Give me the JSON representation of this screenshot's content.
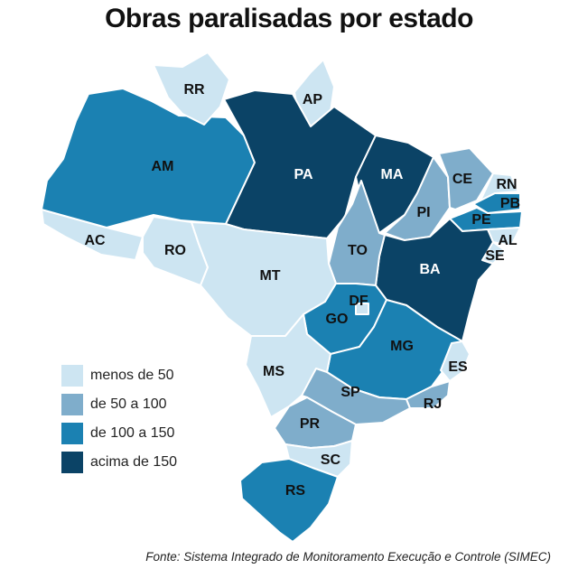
{
  "title": "Obras paralisadas por estado",
  "source": "Fonte: Sistema Integrado de Monitoramento Execução e Controle (SIMEC)",
  "colors": {
    "lt50": "#cde5f2",
    "50to100": "#7fadcb",
    "100to150": "#1b81b2",
    "gt150": "#0b4366",
    "border": "#ffffff"
  },
  "legend": [
    {
      "label": "menos de 50",
      "category": "lt50"
    },
    {
      "label": "de 50 a 100",
      "category": "50to100"
    },
    {
      "label": "de 100 a 150",
      "category": "100to150"
    },
    {
      "label": "acima de 150",
      "category": "gt150"
    }
  ],
  "states": {
    "RR": {
      "label": "RR",
      "category": "lt50"
    },
    "AP": {
      "label": "AP",
      "category": "lt50"
    },
    "AM": {
      "label": "AM",
      "category": "100to150"
    },
    "PA": {
      "label": "PA",
      "category": "gt150"
    },
    "MA": {
      "label": "MA",
      "category": "gt150"
    },
    "CE": {
      "label": "CE",
      "category": "50to100"
    },
    "RN": {
      "label": "RN",
      "category": "lt50"
    },
    "PB": {
      "label": "PB",
      "category": "100to150"
    },
    "PE": {
      "label": "PE",
      "category": "100to150"
    },
    "AL": {
      "label": "AL",
      "category": "lt50"
    },
    "SE": {
      "label": "SE",
      "category": "lt50"
    },
    "PI": {
      "label": "PI",
      "category": "50to100"
    },
    "AC": {
      "label": "AC",
      "category": "lt50"
    },
    "RO": {
      "label": "RO",
      "category": "lt50"
    },
    "TO": {
      "label": "TO",
      "category": "50to100"
    },
    "BA": {
      "label": "BA",
      "category": "gt150"
    },
    "MT": {
      "label": "MT",
      "category": "lt50"
    },
    "DF": {
      "label": "DF",
      "category": "lt50"
    },
    "GO": {
      "label": "GO",
      "category": "100to150"
    },
    "MG": {
      "label": "MG",
      "category": "100to150"
    },
    "ES": {
      "label": "ES",
      "category": "lt50"
    },
    "MS": {
      "label": "MS",
      "category": "lt50"
    },
    "SP": {
      "label": "SP",
      "category": "50to100"
    },
    "RJ": {
      "label": "RJ",
      "category": "50to100"
    },
    "PR": {
      "label": "PR",
      "category": "50to100"
    },
    "SC": {
      "label": "SC",
      "category": "lt50"
    },
    "RS": {
      "label": "RS",
      "category": "100to150"
    }
  }
}
